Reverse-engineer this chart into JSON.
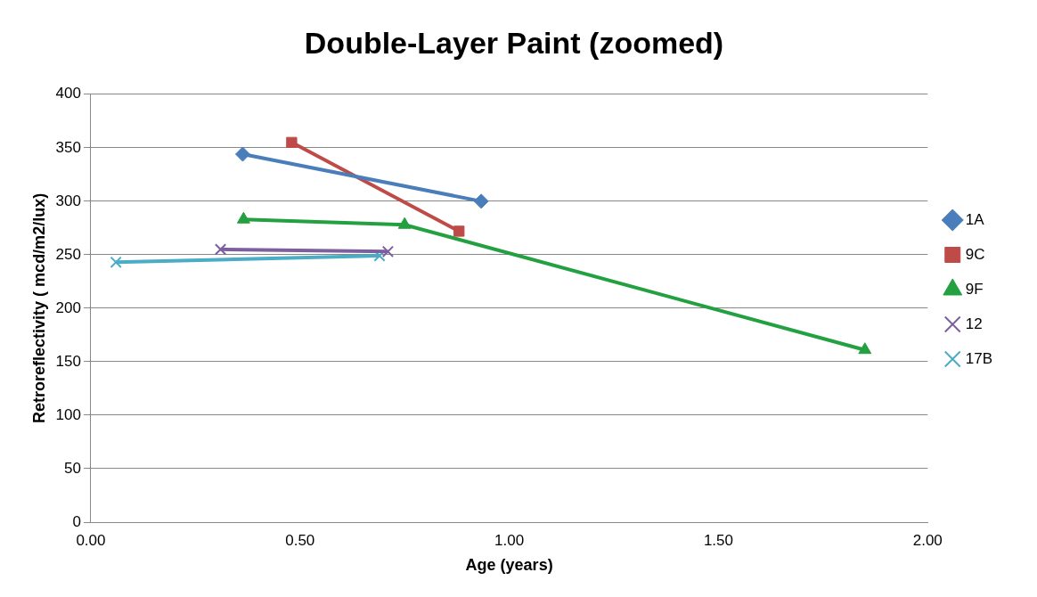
{
  "chart_data": {
    "type": "line",
    "title": "Double-Layer Paint (zoomed)",
    "xlabel": "Age (years)",
    "ylabel": "Retroreflectivity ( mcd/m2/lux)",
    "xlim": [
      0,
      2
    ],
    "xticks": [
      {
        "value": 0,
        "label": "0.00"
      },
      {
        "value": 0.5,
        "label": "0.50"
      },
      {
        "value": 1,
        "label": "1.00"
      },
      {
        "value": 1.5,
        "label": "1.50"
      },
      {
        "value": 2,
        "label": "2.00"
      }
    ],
    "ylim": [
      0,
      400
    ],
    "yticks": [
      0,
      50,
      100,
      150,
      200,
      250,
      300,
      350,
      400
    ],
    "grid": "y",
    "legend": "right",
    "series": [
      {
        "name": "1A",
        "color": "#4a7ebb",
        "marker": "diamond",
        "x": [
          0.363,
          0.933
        ],
        "values": [
          344,
          300
        ]
      },
      {
        "name": "9C",
        "color": "#be4b48",
        "marker": "square",
        "x": [
          0.48,
          0.88
        ],
        "values": [
          355,
          272
        ]
      },
      {
        "name": "9F",
        "color": "#23a040",
        "marker": "triangle",
        "x": [
          0.365,
          0.75,
          1.85
        ],
        "values": [
          283,
          278,
          161
        ]
      },
      {
        "name": "12",
        "color": "#7d5fa0",
        "marker": "cross",
        "x": [
          0.31,
          0.71
        ],
        "values": [
          255,
          253
        ]
      },
      {
        "name": "17B",
        "color": "#4bacc6",
        "marker": "cross",
        "x": [
          0.06,
          0.69
        ],
        "values": [
          243,
          249
        ]
      }
    ]
  }
}
